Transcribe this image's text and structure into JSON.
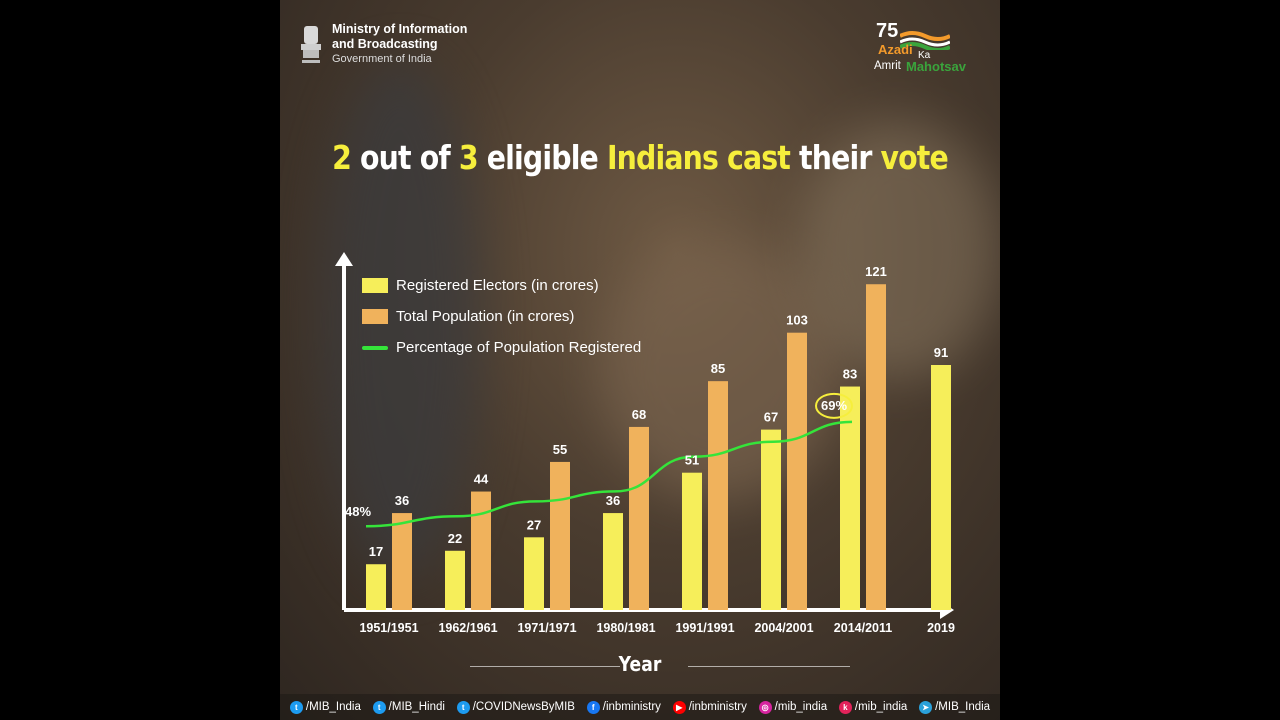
{
  "header": {
    "org_line1": "Ministry of Information",
    "org_line2": "and Broadcasting",
    "org_line3": "Government of India",
    "logo": {
      "num": "75",
      "azadi": "Azadi",
      "ka": "Ka",
      "amrit": "Amrit",
      "mahotsav": "Mahotsav"
    }
  },
  "headline": [
    {
      "text": "2",
      "color": "yellow"
    },
    {
      "text": " out of ",
      "color": "white"
    },
    {
      "text": "3",
      "color": "yellow"
    },
    {
      "text": " eligible ",
      "color": "white"
    },
    {
      "text": "Indians cast",
      "color": "yellow"
    },
    {
      "text": " their ",
      "color": "white"
    },
    {
      "text": "vote",
      "color": "yellow"
    }
  ],
  "chart_data": {
    "type": "bar",
    "categories": [
      "1951/1951",
      "1962/1961",
      "1971/1971",
      "1980/1981",
      "1991/1991",
      "2004/2001",
      "2014/2011",
      "2019"
    ],
    "series": [
      {
        "name": "Registered Electors (in crores)",
        "color": "#f6ee5a",
        "values": [
          17,
          22,
          27,
          36,
          51,
          67,
          83,
          91
        ]
      },
      {
        "name": "Total Population (in crores)",
        "color": "#f0b25c",
        "values": [
          36,
          44,
          55,
          68,
          85,
          103,
          121,
          null
        ]
      }
    ],
    "line": {
      "name": "Percentage of Population Registered",
      "color": "#35e43a",
      "values": [
        48,
        50,
        53,
        55,
        62,
        65,
        69,
        null
      ]
    },
    "annotations": {
      "start_label": "48%",
      "end_label": "69%"
    },
    "xlabel": "Year",
    "ylim": [
      0,
      130
    ],
    "legend": "top-left"
  },
  "footer": [
    {
      "icon": "twitter-icon",
      "color": "#1d9bf0",
      "glyph": "t",
      "text": "/MIB_India"
    },
    {
      "icon": "twitter-icon",
      "color": "#1d9bf0",
      "glyph": "t",
      "text": "/MIB_Hindi"
    },
    {
      "icon": "twitter-icon",
      "color": "#1d9bf0",
      "glyph": "t",
      "text": "/COVIDNewsByMIB"
    },
    {
      "icon": "facebook-icon",
      "color": "#1877f2",
      "glyph": "f",
      "text": "/inbministry"
    },
    {
      "icon": "youtube-icon",
      "color": "#ff0000",
      "glyph": "▶",
      "text": "/inbministry"
    },
    {
      "icon": "instagram-icon",
      "color": "#d6249f",
      "glyph": "◎",
      "text": "/mib_india"
    },
    {
      "icon": "koo-icon",
      "color": "#e2235a",
      "glyph": "k",
      "text": "/mib_india"
    },
    {
      "icon": "telegram-icon",
      "color": "#2aa1da",
      "glyph": "➤",
      "text": "/MIB_India"
    }
  ]
}
